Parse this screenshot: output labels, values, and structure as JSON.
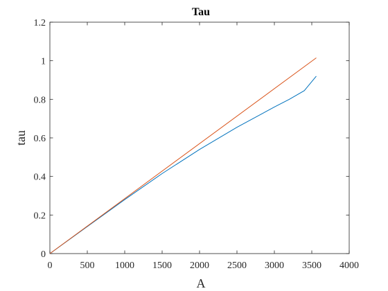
{
  "chart_data": {
    "type": "line",
    "title": "Tau",
    "xlabel": "A",
    "ylabel": "tau",
    "xlim": [
      0,
      4000
    ],
    "ylim": [
      0,
      1.2
    ],
    "x_ticks": [
      "0",
      "500",
      "1000",
      "1500",
      "2000",
      "2500",
      "3000",
      "3500",
      "4000"
    ],
    "y_ticks": [
      "0",
      "0.2",
      "0.4",
      "0.6",
      "0.8",
      "1",
      "1.2"
    ],
    "x_tick_values": [
      0,
      500,
      1000,
      1500,
      2000,
      2500,
      3000,
      3500,
      4000
    ],
    "y_tick_values": [
      0,
      0.2,
      0.4,
      0.6,
      0.8,
      1.0,
      1.2
    ],
    "grid": false,
    "box": true,
    "series": [
      {
        "color": "#0072BD",
        "x": [
          0,
          500,
          1000,
          1500,
          2000,
          2500,
          3000,
          3200,
          3400,
          3560
        ],
        "y": [
          0.0,
          0.14,
          0.28,
          0.415,
          0.54,
          0.655,
          0.76,
          0.8,
          0.845,
          0.92
        ]
      },
      {
        "color": "#D95319",
        "x": [
          0,
          3560
        ],
        "y": [
          0.0,
          1.015
        ]
      }
    ]
  }
}
